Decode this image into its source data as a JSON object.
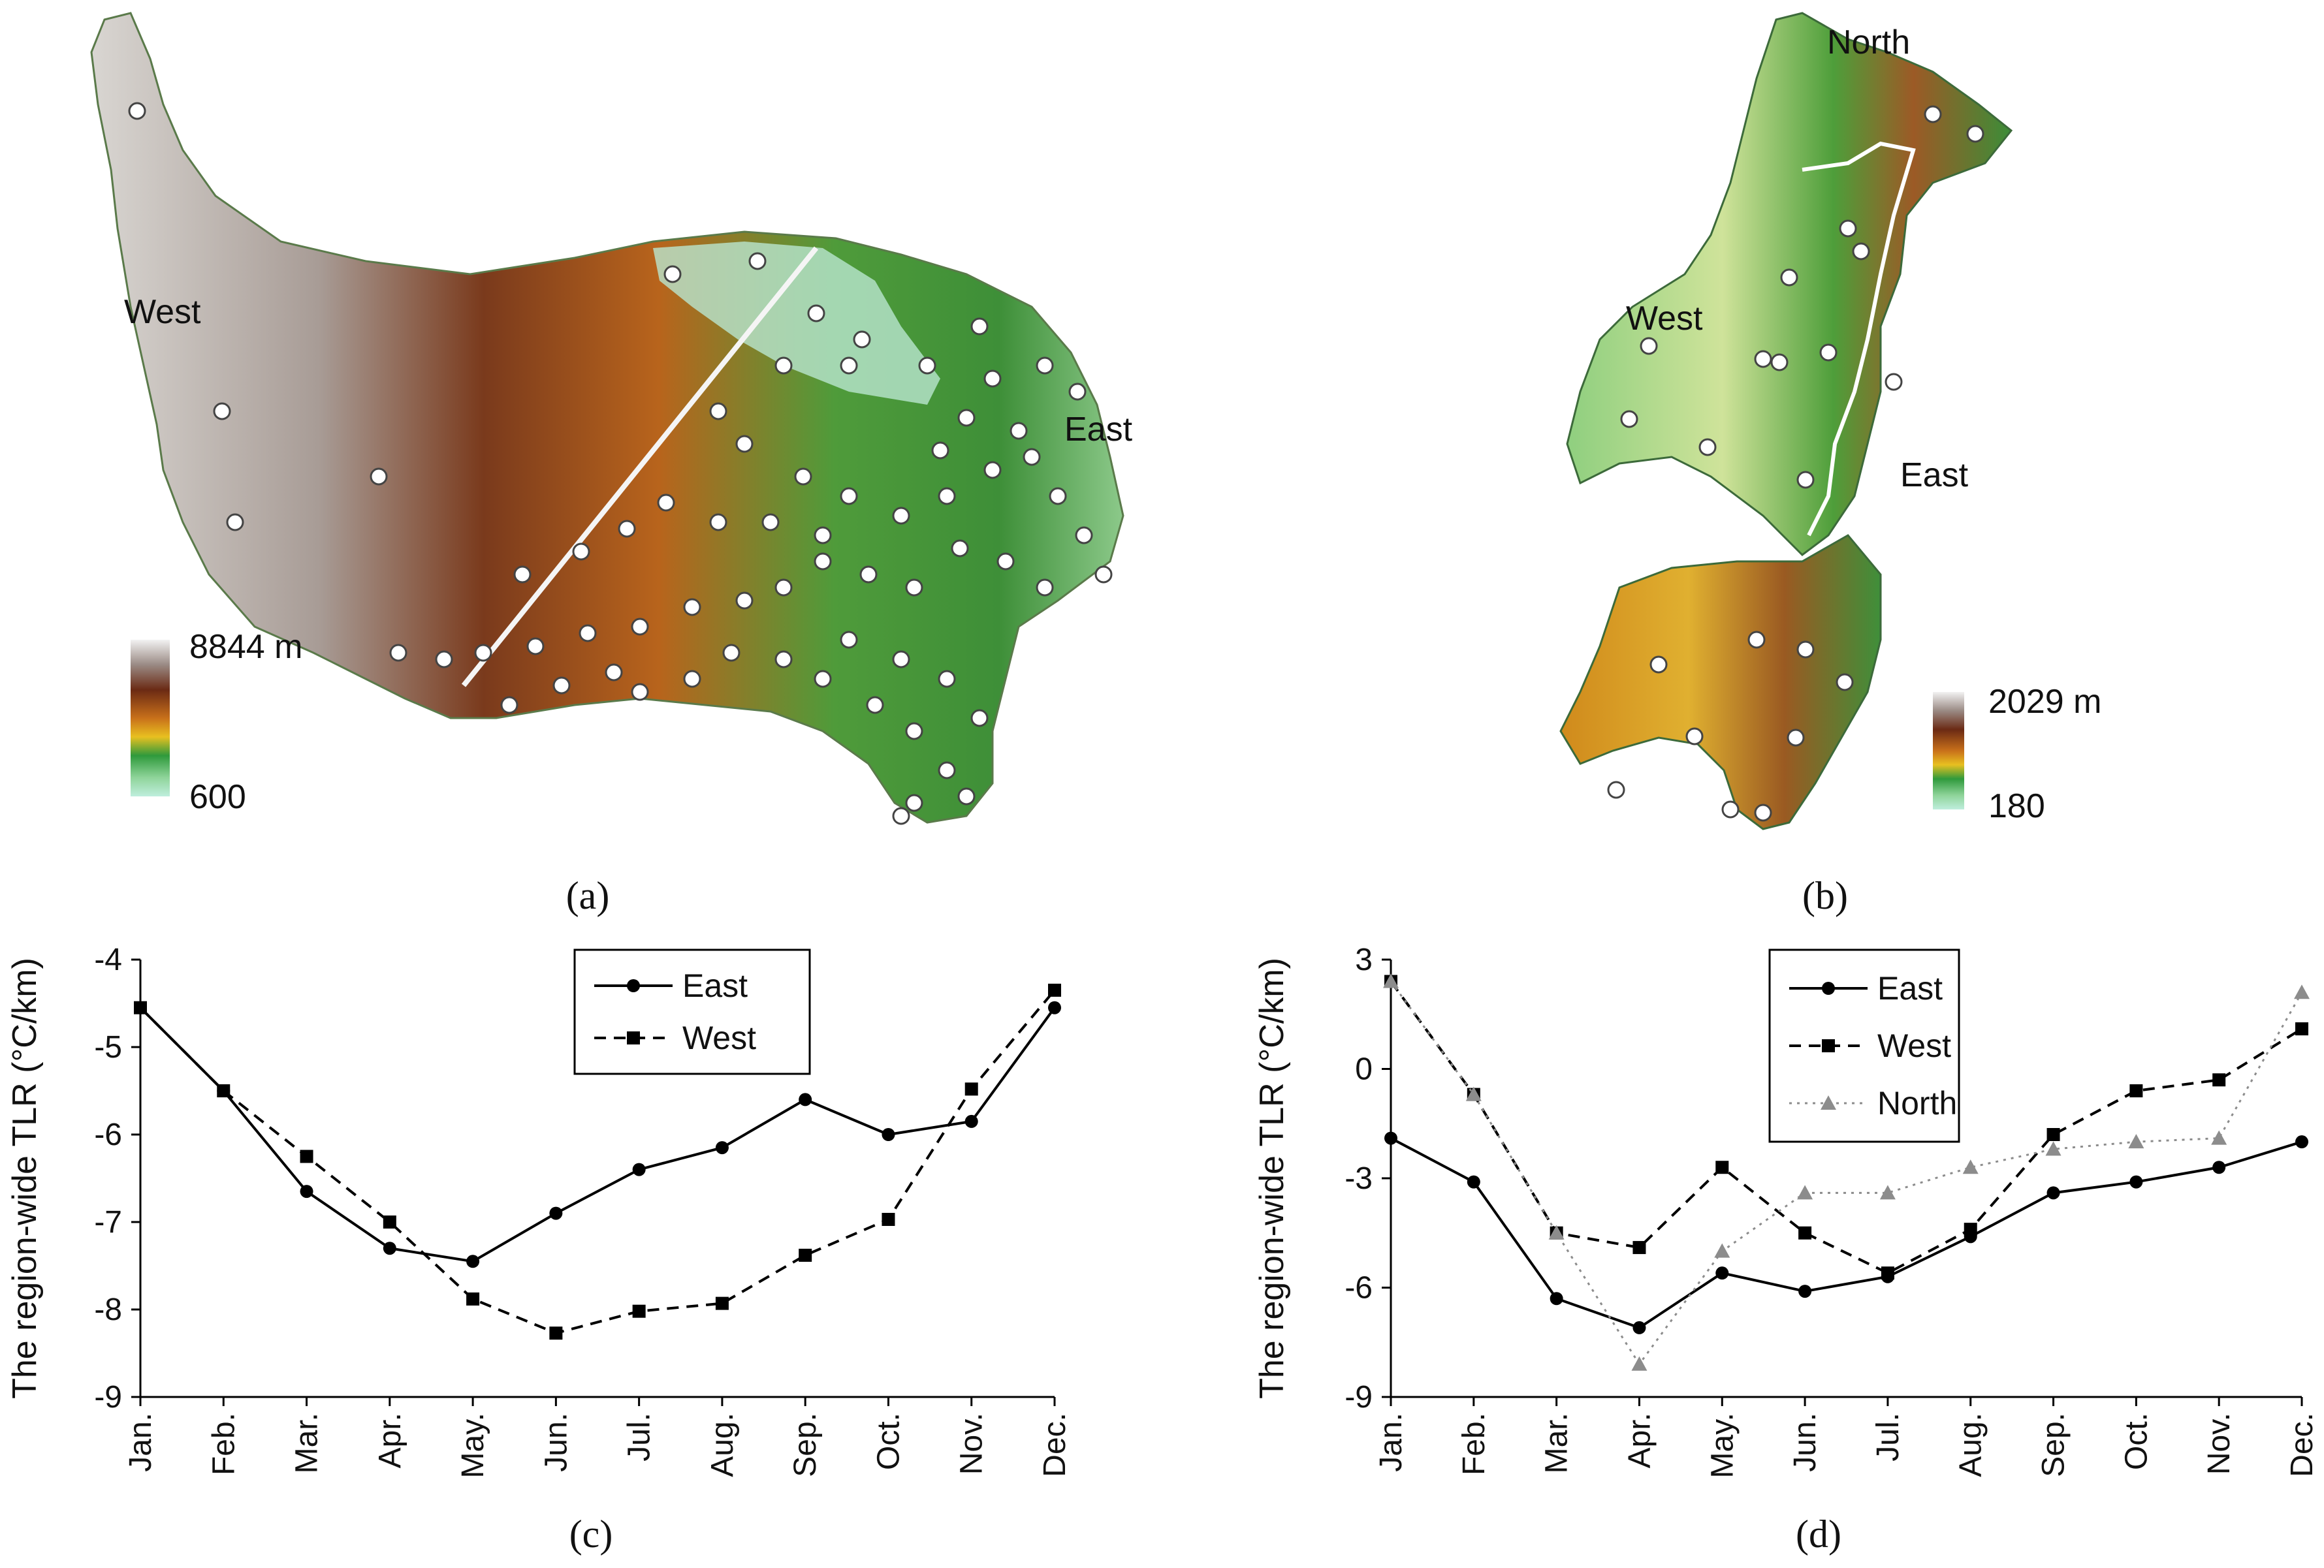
{
  "panels": {
    "a": {
      "label": "(a)",
      "map_labels": [
        "West",
        "East"
      ],
      "scale_top": "8844 m",
      "scale_bottom": "600"
    },
    "b": {
      "label": "(b)",
      "map_labels": [
        "North",
        "West",
        "East"
      ],
      "scale_top": "2029 m",
      "scale_bottom": "180"
    },
    "c": {
      "label": "(c)"
    },
    "d": {
      "label": "(d)"
    }
  },
  "colors": {
    "terrain_low": "#bfeedd",
    "terrain_green": "#2f9a3c",
    "terrain_yellow": "#e8c020",
    "terrain_orange": "#c8701a",
    "terrain_brown": "#6b2a14",
    "terrain_high": "#f2f2f2",
    "series_east": "#000000",
    "series_west": "#000000",
    "series_north": "#8c8c8c"
  },
  "chart_data": [
    {
      "type": "line",
      "panel": "c",
      "categories": [
        "Jan.",
        "Feb.",
        "Mar.",
        "Apr.",
        "May.",
        "Jun.",
        "Jul.",
        "Aug.",
        "Sep.",
        "Oct.",
        "Nov.",
        "Dec."
      ],
      "series": [
        {
          "name": "East",
          "marker": "circle",
          "line": "solid",
          "values": [
            -4.55,
            -5.5,
            -6.65,
            -7.3,
            -7.45,
            -6.9,
            -6.4,
            -6.15,
            -5.6,
            -6.0,
            -5.85,
            -4.55
          ]
        },
        {
          "name": "West",
          "marker": "square",
          "line": "dashed",
          "values": [
            -4.55,
            -5.5,
            -6.25,
            -7.0,
            -7.88,
            -8.27,
            -8.02,
            -7.93,
            -7.38,
            -6.97,
            -5.48,
            -4.35
          ]
        }
      ],
      "ylabel": "The region-wide TLR  (°C/km)",
      "ylim": [
        -9,
        -4
      ],
      "yticks": [
        "-4",
        "-5",
        "-6",
        "-7",
        "-8",
        "-9"
      ],
      "legend": "top-center",
      "grid": false
    },
    {
      "type": "line",
      "panel": "d",
      "categories": [
        "Jan.",
        "Feb.",
        "Mar.",
        "Apr.",
        "May.",
        "Jun.",
        "Jul.",
        "Aug.",
        "Sep.",
        "Oct.",
        "Nov.",
        "Dec."
      ],
      "series": [
        {
          "name": "East",
          "marker": "circle",
          "line": "solid",
          "values": [
            -1.9,
            -3.1,
            -6.3,
            -7.1,
            -5.6,
            -6.1,
            -5.7,
            -4.6,
            -3.4,
            -3.1,
            -2.7,
            -2.0
          ]
        },
        {
          "name": "West",
          "marker": "square",
          "line": "dashed",
          "values": [
            2.4,
            -0.7,
            -4.5,
            -4.9,
            -2.7,
            -4.5,
            -5.6,
            -4.4,
            -1.8,
            -0.6,
            -0.3,
            1.1
          ]
        },
        {
          "name": "North",
          "marker": "triangle",
          "line": "dotted",
          "values": [
            2.4,
            -0.7,
            -4.5,
            -8.1,
            -5.0,
            -3.4,
            -3.4,
            -2.7,
            -2.2,
            -2.0,
            -1.9,
            2.1
          ]
        }
      ],
      "ylabel": "The region-wide TLR  (°C/km)",
      "ylim": [
        -9,
        3
      ],
      "yticks": [
        "3",
        "0",
        "-3",
        "-6",
        "-9"
      ],
      "legend": "top-center",
      "grid": false
    }
  ]
}
